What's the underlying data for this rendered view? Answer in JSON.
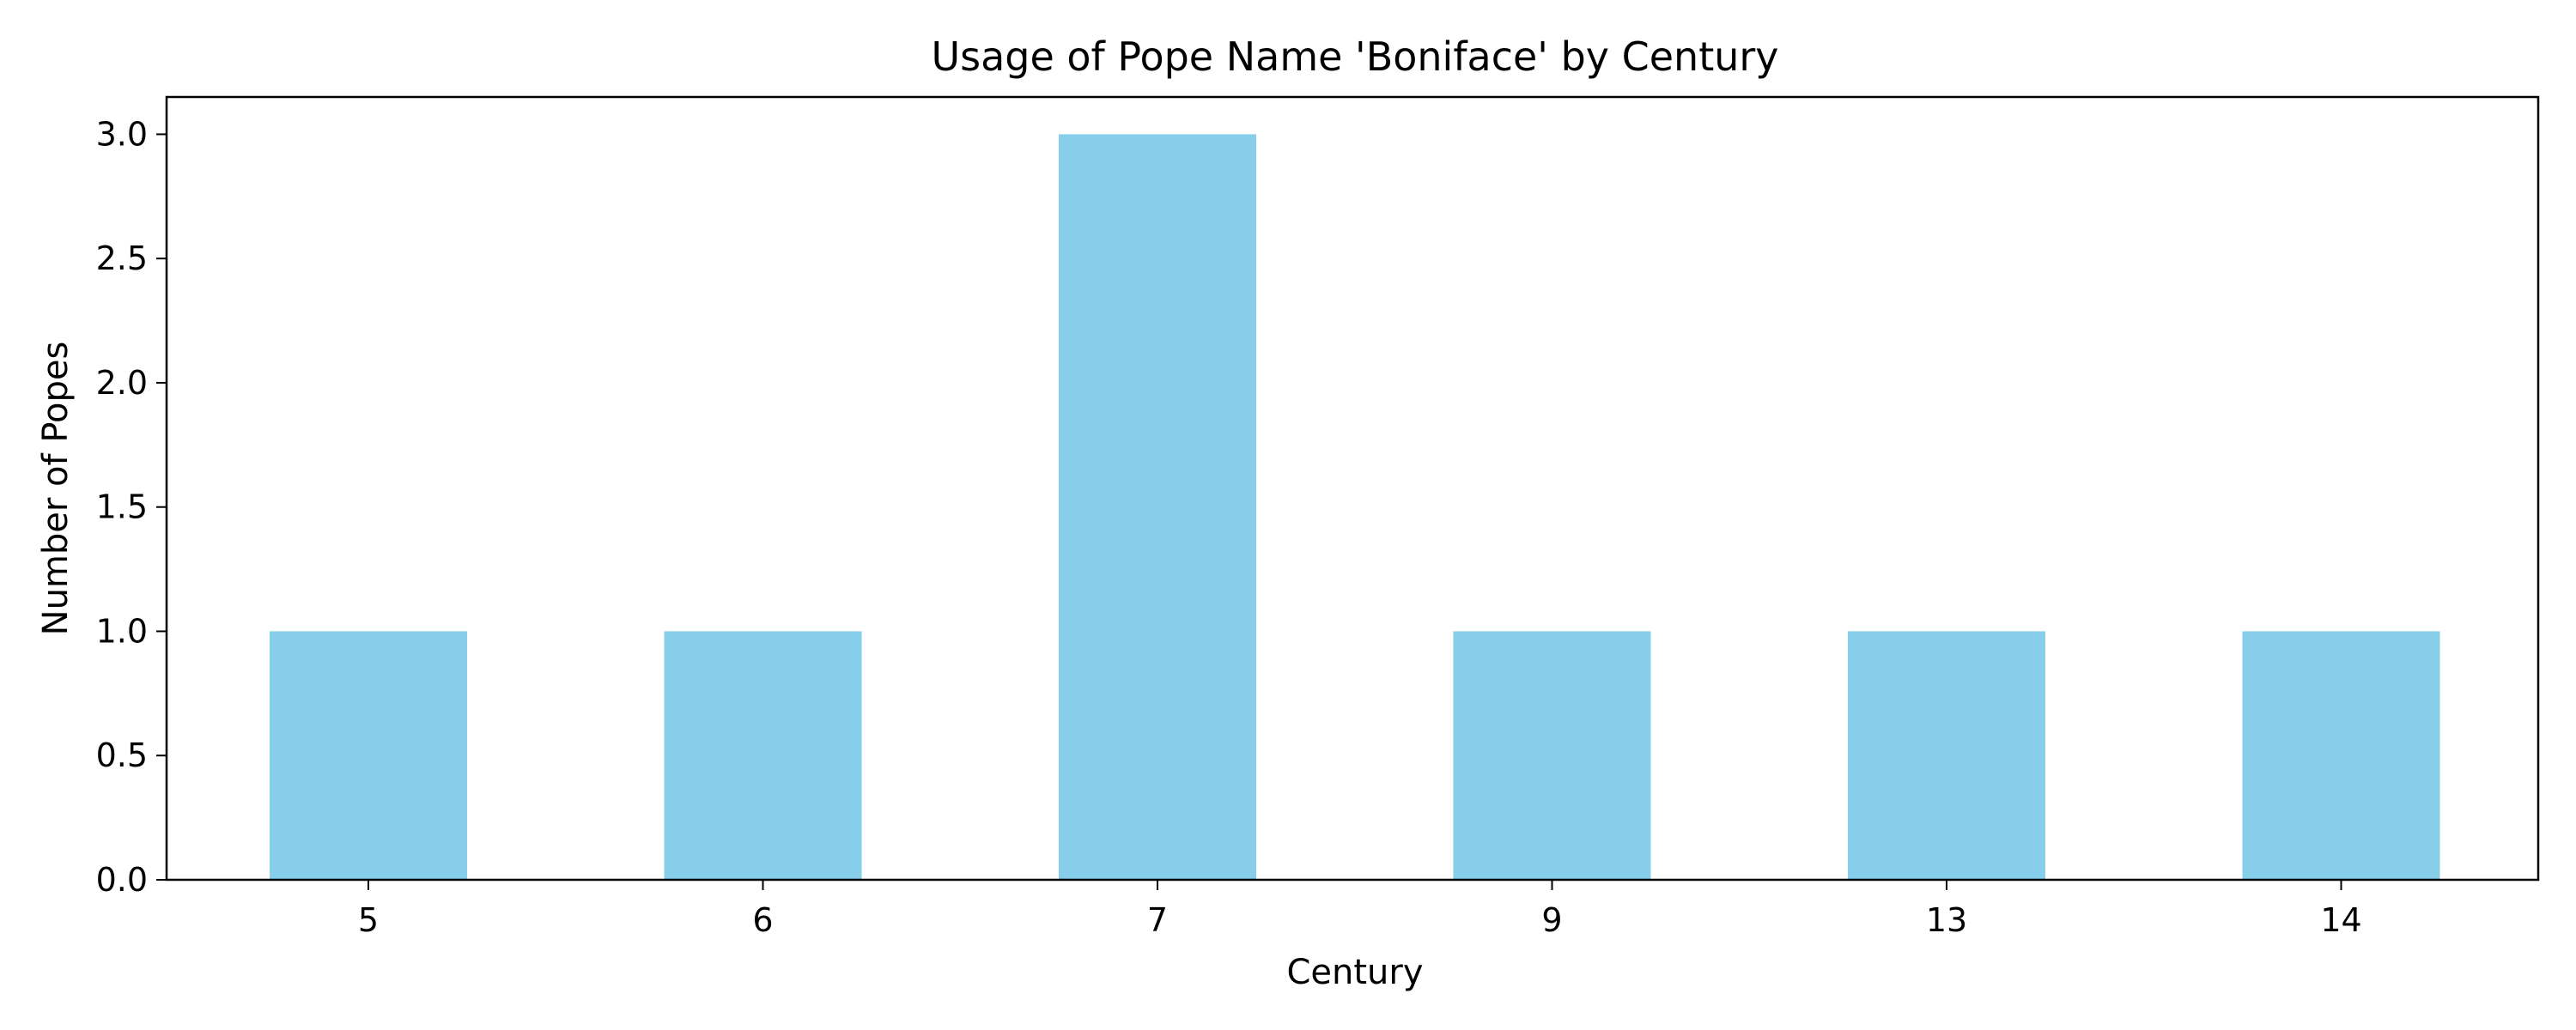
{
  "chart_data": {
    "type": "bar",
    "title": "Usage of Pope Name 'Boniface' by Century",
    "xlabel": "Century",
    "ylabel": "Number of Popes",
    "categories": [
      "5",
      "6",
      "7",
      "9",
      "13",
      "14"
    ],
    "values": [
      1,
      1,
      3,
      1,
      1,
      1
    ],
    "ylim": [
      0,
      3.15
    ],
    "yticks": [
      "0.0",
      "0.5",
      "1.0",
      "1.5",
      "2.0",
      "2.5",
      "3.0"
    ],
    "bar_color": "#87CEEB",
    "grid": false,
    "legend": "none"
  }
}
